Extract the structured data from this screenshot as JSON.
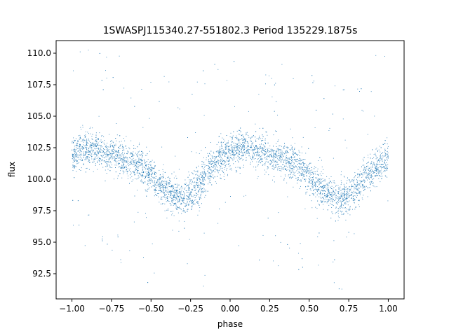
{
  "chart_data": {
    "type": "scatter",
    "title": "1SWASPJ115340.27-551802.3 Period 135229.1875s",
    "xlabel": "phase",
    "ylabel": "flux",
    "xlim": [
      -1.1,
      1.1
    ],
    "ylim": [
      90.5,
      111.0
    ],
    "x_ticks": [
      -1.0,
      -0.75,
      -0.5,
      -0.25,
      0.0,
      0.25,
      0.5,
      0.75,
      1.0
    ],
    "x_tick_labels": [
      "−1.00",
      "−0.75",
      "−0.50",
      "−0.25",
      "0.00",
      "0.25",
      "0.50",
      "0.75",
      "1.00"
    ],
    "y_ticks": [
      92.5,
      95.0,
      97.5,
      100.0,
      102.5,
      105.0,
      107.5,
      110.0
    ],
    "y_tick_labels": [
      "92.5",
      "95.0",
      "97.5",
      "100.0",
      "102.5",
      "105.0",
      "107.5",
      "110.0"
    ],
    "grid": false,
    "legend": "none",
    "marker_color": "#1f77b4",
    "series": [
      {
        "x": [
          -1.0,
          -0.95,
          -0.9,
          -0.85,
          -0.8,
          -0.75,
          -0.7,
          -0.65,
          -0.6,
          -0.55,
          -0.5,
          -0.45,
          -0.4,
          -0.35,
          -0.3,
          -0.25,
          -0.2,
          -0.15,
          -0.1,
          -0.05,
          0.0,
          0.05,
          0.1,
          0.15,
          0.2,
          0.25,
          0.3,
          0.35,
          0.4,
          0.45,
          0.5,
          0.55,
          0.6,
          0.65,
          0.7,
          0.75,
          0.8,
          0.85,
          0.9,
          0.95,
          1.0
        ],
        "y": [
          101.8,
          102.3,
          102.4,
          102.3,
          102.0,
          101.9,
          101.8,
          101.5,
          101.2,
          100.9,
          100.2,
          99.6,
          99.0,
          98.6,
          98.4,
          98.8,
          99.6,
          100.4,
          101.2,
          101.8,
          102.2,
          102.4,
          102.4,
          102.3,
          102.1,
          101.9,
          101.8,
          101.5,
          101.2,
          100.8,
          100.2,
          99.5,
          99.0,
          98.6,
          98.4,
          98.7,
          99.3,
          100.0,
          100.6,
          101.2,
          101.7
        ]
      }
    ]
  }
}
